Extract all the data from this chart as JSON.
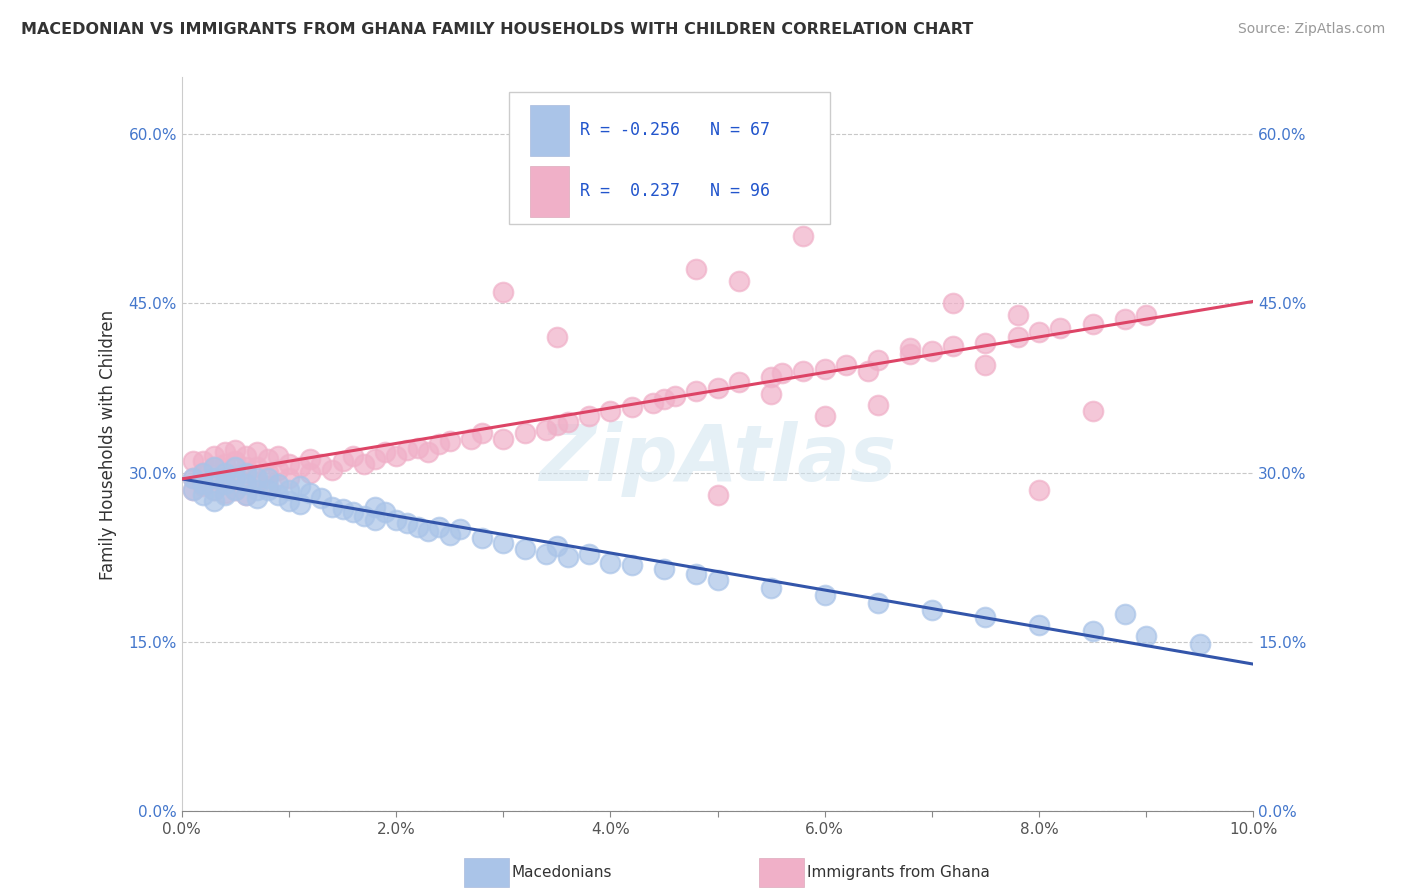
{
  "title": "MACEDONIAN VS IMMIGRANTS FROM GHANA FAMILY HOUSEHOLDS WITH CHILDREN CORRELATION CHART",
  "source": "Source: ZipAtlas.com",
  "ylabel": "Family Households with Children",
  "xlim": [
    0.0,
    0.1
  ],
  "ylim": [
    0.0,
    0.65
  ],
  "ytick_labels": [
    "0.0%",
    "15.0%",
    "30.0%",
    "45.0%",
    "60.0%"
  ],
  "ytick_vals": [
    0.0,
    0.15,
    0.3,
    0.45,
    0.6
  ],
  "xtick_labels": [
    "0.0%",
    "",
    "2.0%",
    "",
    "4.0%",
    "",
    "6.0%",
    "",
    "8.0%",
    "",
    "10.0%"
  ],
  "xtick_vals": [
    0.0,
    0.01,
    0.02,
    0.03,
    0.04,
    0.05,
    0.06,
    0.07,
    0.08,
    0.09,
    0.1
  ],
  "grid_color": "#c8c8c8",
  "background_color": "#ffffff",
  "macedonian_color": "#aac4e8",
  "ghana_color": "#f0b0c8",
  "macedonian_line_color": "#3355aa",
  "ghana_line_color": "#dd4466",
  "watermark": "ZipAtlas",
  "mac_x": [
    0.001,
    0.001,
    0.002,
    0.002,
    0.002,
    0.003,
    0.003,
    0.003,
    0.003,
    0.004,
    0.004,
    0.004,
    0.005,
    0.005,
    0.005,
    0.006,
    0.006,
    0.006,
    0.007,
    0.007,
    0.007,
    0.008,
    0.008,
    0.009,
    0.009,
    0.01,
    0.01,
    0.011,
    0.011,
    0.012,
    0.013,
    0.014,
    0.015,
    0.016,
    0.017,
    0.018,
    0.018,
    0.019,
    0.02,
    0.021,
    0.022,
    0.023,
    0.024,
    0.025,
    0.026,
    0.028,
    0.03,
    0.032,
    0.034,
    0.035,
    0.036,
    0.038,
    0.04,
    0.042,
    0.045,
    0.048,
    0.05,
    0.055,
    0.06,
    0.065,
    0.07,
    0.075,
    0.08,
    0.085,
    0.088,
    0.09,
    0.095
  ],
  "mac_y": [
    0.295,
    0.285,
    0.3,
    0.29,
    0.28,
    0.305,
    0.295,
    0.285,
    0.275,
    0.3,
    0.29,
    0.28,
    0.305,
    0.295,
    0.285,
    0.3,
    0.29,
    0.28,
    0.295,
    0.285,
    0.278,
    0.295,
    0.285,
    0.29,
    0.28,
    0.285,
    0.275,
    0.288,
    0.272,
    0.282,
    0.278,
    0.27,
    0.268,
    0.265,
    0.262,
    0.27,
    0.258,
    0.265,
    0.258,
    0.255,
    0.252,
    0.248,
    0.252,
    0.245,
    0.25,
    0.242,
    0.238,
    0.232,
    0.228,
    0.235,
    0.225,
    0.228,
    0.22,
    0.218,
    0.215,
    0.21,
    0.205,
    0.198,
    0.192,
    0.185,
    0.178,
    0.172,
    0.165,
    0.16,
    0.175,
    0.155,
    0.148
  ],
  "gha_x": [
    0.001,
    0.001,
    0.001,
    0.002,
    0.002,
    0.002,
    0.003,
    0.003,
    0.003,
    0.003,
    0.004,
    0.004,
    0.004,
    0.004,
    0.005,
    0.005,
    0.005,
    0.005,
    0.006,
    0.006,
    0.006,
    0.006,
    0.007,
    0.007,
    0.007,
    0.008,
    0.008,
    0.008,
    0.009,
    0.009,
    0.01,
    0.01,
    0.011,
    0.012,
    0.012,
    0.013,
    0.014,
    0.015,
    0.016,
    0.017,
    0.018,
    0.019,
    0.02,
    0.021,
    0.022,
    0.023,
    0.024,
    0.025,
    0.027,
    0.028,
    0.03,
    0.032,
    0.034,
    0.035,
    0.036,
    0.038,
    0.04,
    0.042,
    0.044,
    0.045,
    0.046,
    0.048,
    0.05,
    0.052,
    0.055,
    0.056,
    0.058,
    0.06,
    0.062,
    0.065,
    0.068,
    0.07,
    0.072,
    0.075,
    0.078,
    0.08,
    0.082,
    0.085,
    0.088,
    0.09,
    0.048,
    0.052,
    0.03,
    0.035,
    0.058,
    0.064,
    0.072,
    0.078,
    0.06,
    0.065,
    0.055,
    0.05,
    0.068,
    0.075,
    0.08,
    0.085
  ],
  "gha_y": [
    0.31,
    0.295,
    0.285,
    0.31,
    0.3,
    0.288,
    0.315,
    0.305,
    0.295,
    0.285,
    0.318,
    0.308,
    0.295,
    0.282,
    0.32,
    0.31,
    0.298,
    0.285,
    0.315,
    0.305,
    0.292,
    0.28,
    0.318,
    0.305,
    0.292,
    0.312,
    0.3,
    0.288,
    0.315,
    0.302,
    0.308,
    0.295,
    0.305,
    0.312,
    0.3,
    0.308,
    0.302,
    0.31,
    0.315,
    0.308,
    0.312,
    0.318,
    0.315,
    0.32,
    0.322,
    0.318,
    0.325,
    0.328,
    0.33,
    0.335,
    0.33,
    0.335,
    0.338,
    0.342,
    0.345,
    0.35,
    0.355,
    0.358,
    0.362,
    0.365,
    0.368,
    0.372,
    0.375,
    0.38,
    0.385,
    0.388,
    0.39,
    0.392,
    0.395,
    0.4,
    0.405,
    0.408,
    0.412,
    0.415,
    0.42,
    0.425,
    0.428,
    0.432,
    0.436,
    0.44,
    0.48,
    0.47,
    0.46,
    0.42,
    0.51,
    0.39,
    0.45,
    0.44,
    0.35,
    0.36,
    0.37,
    0.28,
    0.41,
    0.395,
    0.285,
    0.355
  ]
}
